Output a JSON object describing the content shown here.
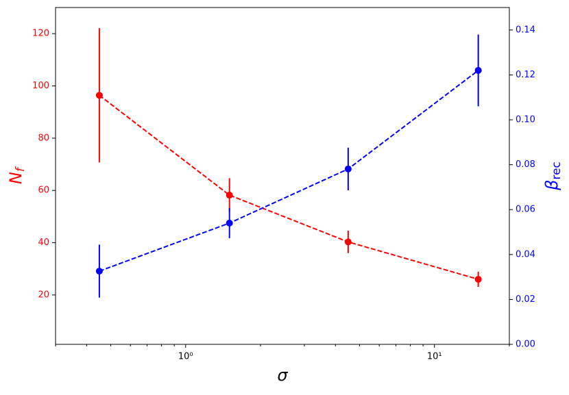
{
  "chart_data": {
    "type": "errorbar-dual",
    "xlabel": "σ",
    "ylabel": {
      "text": "N",
      "sub": "f"
    },
    "y2label": {
      "text": "β",
      "sub": "rec"
    },
    "x": [
      0.45,
      1.5,
      4.5,
      15
    ],
    "xscale": "log",
    "xlim": [
      0.3,
      20
    ],
    "xticks": [
      {
        "value": 1,
        "label": "10⁰"
      },
      {
        "value": 10,
        "label": "10¹"
      }
    ],
    "xminorticks": [
      0.3,
      0.4,
      0.5,
      0.6,
      0.7,
      0.8,
      0.9,
      2,
      3,
      4,
      5,
      6,
      7,
      8,
      9,
      20
    ],
    "ylim": [
      1.1,
      130
    ],
    "yticks": [
      20,
      40,
      60,
      80,
      100,
      120
    ],
    "y2lim": [
      0,
      0.15
    ],
    "y2ticks": [
      {
        "value": 0,
        "label": "0.00"
      },
      {
        "value": 0.02,
        "label": "0.02"
      },
      {
        "value": 0.04,
        "label": "0.04"
      },
      {
        "value": 0.06,
        "label": "0.06"
      },
      {
        "value": 0.08,
        "label": "0.08"
      },
      {
        "value": 0.1,
        "label": "0.10"
      },
      {
        "value": 0.12,
        "label": "0.12"
      },
      {
        "value": 0.14,
        "label": "0.14"
      }
    ],
    "series": [
      {
        "color": "#ff0000",
        "values": [
          96.4,
          58.2,
          40.3,
          26.0
        ],
        "errors": [
          25.7,
          6.5,
          4.3,
          2.9
        ]
      },
      {
        "color": "#0000ff",
        "axis": "y2",
        "values": [
          0.0326,
          0.054,
          0.0781,
          0.122
        ],
        "errors": [
          0.0118,
          0.0067,
          0.0095,
          0.016
        ]
      }
    ]
  }
}
